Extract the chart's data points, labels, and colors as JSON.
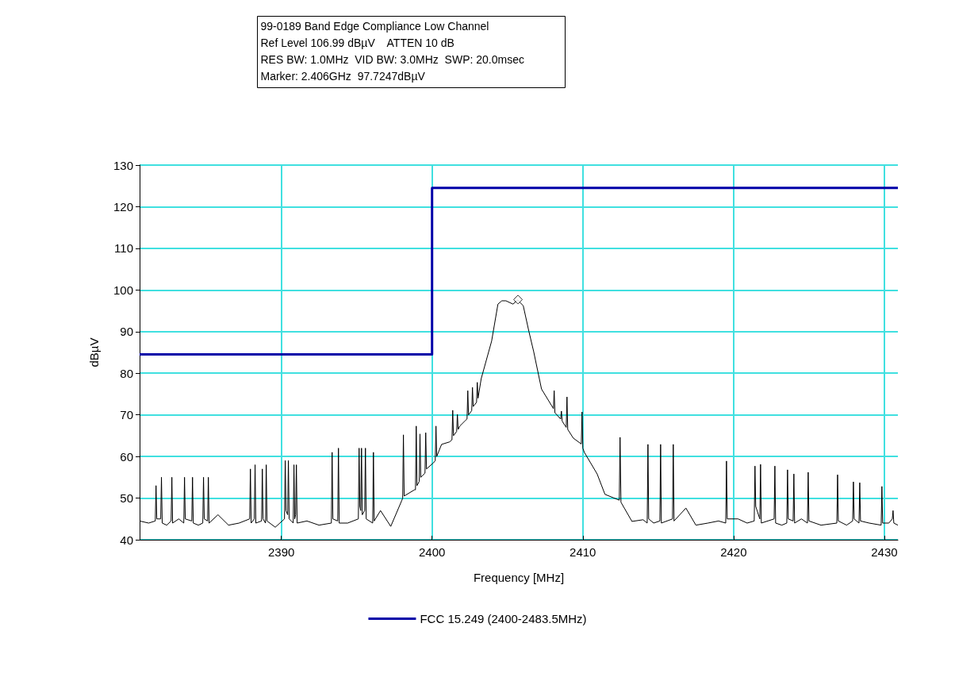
{
  "chart_data": {
    "type": "line",
    "title": "99-0189 Band Edge Compliance Low Channel",
    "annotations": [
      "Ref Level 106.99 dBµV    ATTEN 10 dB",
      "RES BW: 1.0MHz  VID BW: 3.0MHz  SWP: 20.0msec",
      "Marker: 2.406GHz  97.7247dBµV"
    ],
    "xlabel": "Frequency [MHz]",
    "ylabel": "dBµV",
    "xlim": [
      2380.6,
      2430.9
    ],
    "xticks": [
      2390,
      2400,
      2410,
      2420,
      2430
    ],
    "ylim": [
      40,
      130
    ],
    "yticks": [
      40,
      50,
      60,
      70,
      80,
      90,
      100,
      110,
      120,
      130
    ],
    "grid": true,
    "legend": "bottom",
    "line_style": "solid",
    "series": [
      {
        "type": "step",
        "name": "FCC 15.249 (2400-2483.5MHz)",
        "color": "#0000a8",
        "x": [
          2380.6,
          2400,
          2430.9
        ],
        "values": [
          84.5,
          124.5,
          124.5
        ]
      },
      {
        "color": "#000000",
        "marker": "none",
        "x": [
          2380.6,
          2381.2,
          2381.64,
          2381.69,
          2381.74,
          2382.0,
          2382.05,
          2382.1,
          2382.4,
          2382.69,
          2382.74,
          2382.79,
          2383.2,
          2383.53,
          2383.58,
          2383.63,
          2384.06,
          2384.11,
          2384.16,
          2384.5,
          2384.79,
          2384.84,
          2384.89,
          2385.11,
          2385.16,
          2385.21,
          2385.8,
          2386.5,
          2387.2,
          2387.9,
          2387.95,
          2388.0,
          2388.21,
          2388.26,
          2388.31,
          2388.69,
          2388.74,
          2388.79,
          2388.95,
          2389.0,
          2389.05,
          2389.6,
          2390.21,
          2390.26,
          2390.31,
          2390.42,
          2390.47,
          2390.52,
          2390.79,
          2390.84,
          2390.89,
          2390.95,
          2391.0,
          2391.05,
          2391.7,
          2392.5,
          2393.32,
          2393.37,
          2393.42,
          2393.74,
          2393.79,
          2393.84,
          2394.4,
          2395.11,
          2395.16,
          2395.21,
          2395.27,
          2395.32,
          2395.37,
          2395.53,
          2395.58,
          2395.63,
          2396.06,
          2396.11,
          2396.16,
          2396.58,
          2397.26,
          2398.0,
          2398.05,
          2398.1,
          2398.15,
          2398.84,
          2398.9,
          2398.95,
          2399.0,
          2399.15,
          2399.2,
          2399.25,
          2399.53,
          2399.58,
          2399.63,
          2400.1,
          2400.21,
          2400.26,
          2400.31,
          2400.63,
          2401.16,
          2401.32,
          2401.37,
          2401.42,
          2401.63,
          2401.68,
          2401.73,
          2401.84,
          2402.2,
          2402.32,
          2402.37,
          2402.42,
          2402.63,
          2402.68,
          2402.73,
          2402.95,
          2403.0,
          2403.05,
          2403.26,
          2403.95,
          2404.37,
          2404.63,
          2404.9,
          2405.37,
          2405.68,
          2406.05,
          2406.42,
          2406.74,
          2407.26,
          2408.0,
          2408.05,
          2408.1,
          2408.15,
          2408.53,
          2408.58,
          2408.63,
          2408.84,
          2408.9,
          2408.95,
          2409.0,
          2409.37,
          2409.9,
          2409.95,
          2410.0,
          2410.1,
          2410.95,
          2411.47,
          2412.42,
          2412.47,
          2412.53,
          2413.26,
          2414.0,
          2414.27,
          2414.32,
          2414.37,
          2414.7,
          2415.11,
          2415.16,
          2415.21,
          2415.95,
          2416.0,
          2416.05,
          2416.84,
          2417.5,
          2418.3,
          2419.0,
          2419.48,
          2419.53,
          2419.58,
          2420.3,
          2420.9,
          2421.37,
          2421.42,
          2421.47,
          2421.74,
          2421.79,
          2421.84,
          2422.69,
          2422.74,
          2422.79,
          2423.2,
          2423.53,
          2423.58,
          2423.63,
          2423.95,
          2424.0,
          2424.05,
          2424.5,
          2424.9,
          2424.95,
          2425.0,
          2425.8,
          2426.85,
          2426.9,
          2426.95,
          2427.5,
          2427.9,
          2427.95,
          2428.0,
          2428.32,
          2428.37,
          2428.42,
          2429.0,
          2429.79,
          2429.84,
          2429.89,
          2430.3,
          2430.53,
          2430.58,
          2430.63,
          2430.9
        ],
        "values": [
          44.5,
          44,
          44.5,
          53,
          45,
          45,
          55,
          44,
          43.5,
          44.5,
          55,
          44,
          45,
          44,
          55,
          45,
          44.5,
          55,
          44,
          43.5,
          44,
          55,
          45,
          44.5,
          55,
          44,
          46,
          43.5,
          44,
          45,
          57,
          44,
          45,
          58,
          44,
          44.5,
          57,
          45,
          44,
          58,
          44.5,
          43,
          45,
          59,
          47,
          46,
          59,
          45,
          44,
          58,
          45,
          46,
          58,
          44,
          44.5,
          43.5,
          44,
          61,
          45,
          44.5,
          62,
          44,
          44,
          45,
          62,
          48,
          47,
          62,
          46,
          47,
          62,
          45,
          44,
          61,
          44.5,
          47,
          43.2,
          49.5,
          50,
          65.2,
          50.5,
          52,
          52,
          67.3,
          53,
          54,
          65.4,
          55,
          56,
          65.7,
          57,
          58.5,
          59,
          67.3,
          60,
          62.9,
          63.5,
          64,
          71.1,
          65,
          66,
          70.1,
          66.5,
          67.3,
          68.6,
          69,
          75.8,
          70,
          71,
          76.6,
          72,
          73,
          77.8,
          74,
          78.7,
          87.7,
          96.6,
          97.4,
          97.4,
          96.6,
          97.6,
          96.2,
          90.1,
          85.2,
          76.2,
          71.8,
          71.5,
          75.8,
          70.5,
          69,
          70.9,
          68.5,
          67.3,
          67,
          74.3,
          66.5,
          64.4,
          63,
          70.7,
          62,
          61,
          55.8,
          50.9,
          49.5,
          64.6,
          49,
          44.4,
          44.8,
          44,
          62.9,
          45,
          44,
          44.5,
          62.9,
          44,
          45,
          62.9,
          44.5,
          47.6,
          43.5,
          44,
          44.5,
          44,
          58.9,
          45,
          45,
          44,
          44.5,
          57.7,
          48,
          45,
          58.1,
          44,
          45,
          57.7,
          44,
          43.5,
          44,
          56.8,
          45,
          44.5,
          55.8,
          44,
          45,
          44,
          56.2,
          44.5,
          43.5,
          44,
          55.6,
          44.5,
          43.5,
          44.5,
          53.9,
          45,
          44,
          53.7,
          44.5,
          44,
          43.5,
          52.8,
          44,
          44,
          45,
          47,
          44,
          43.5
        ]
      },
      {
        "type": "scatter",
        "color": "#000000",
        "marker": "diamond",
        "x": [
          2405.7
        ],
        "values": [
          97.7
        ]
      }
    ]
  }
}
